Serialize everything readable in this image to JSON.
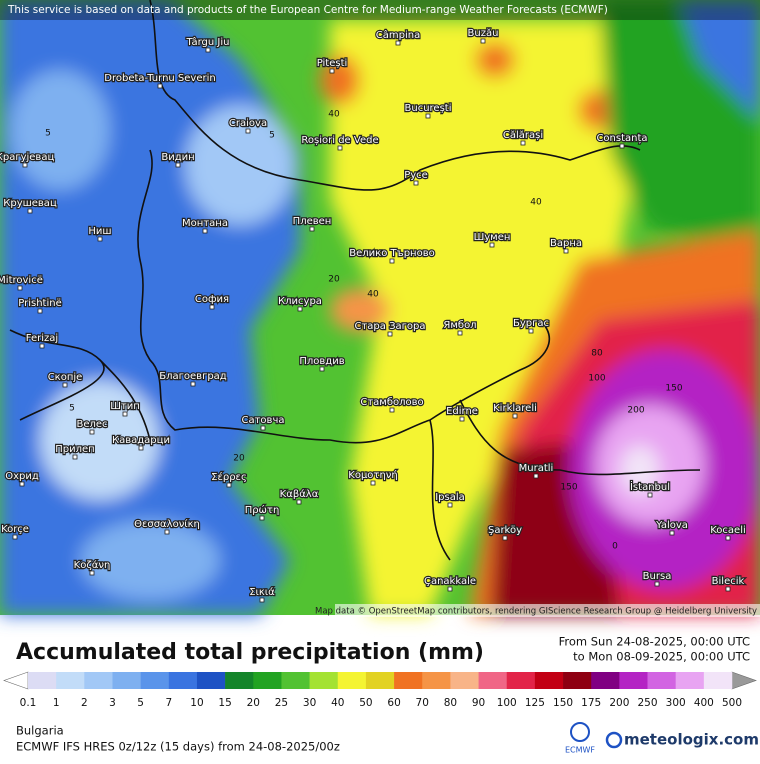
{
  "banner": "This service is based on data and products of the European Centre for Medium-range Weather Forecasts (ECMWF)",
  "attribution": "Map data © OpenStreetMap contributors, rendering GIScience Research Group @ Heidelberg University",
  "title": "Accumulated total precipitation (mm)",
  "period_from": "From Sun 24-08-2025, 00:00 UTC",
  "period_to": "to Mon 08-09-2025, 00:00 UTC",
  "legend": {
    "levels": [
      0.1,
      1,
      2,
      3,
      5,
      7,
      10,
      15,
      20,
      25,
      30,
      40,
      50,
      60,
      70,
      80,
      90,
      100,
      125,
      150,
      175,
      200,
      250,
      300,
      400,
      500
    ],
    "colors": [
      "#dcdcf4",
      "#c2dcf8",
      "#a2c8f6",
      "#7eb0f0",
      "#5a94ea",
      "#3a74e0",
      "#1e52c4",
      "#14852a",
      "#22a322",
      "#52c232",
      "#a4e232",
      "#f4f432",
      "#e2d222",
      "#f07222",
      "#f59446",
      "#f8b488",
      "#f06686",
      "#e22448",
      "#c20014",
      "#8e0012",
      "#800082",
      "#b424c4",
      "#d264e2",
      "#e8a4f2",
      "#f2e4f8"
    ]
  },
  "region": "Bulgaria",
  "model": "ECMWF IFS HRES 0z/12z (15 days) from 24-08-2025/00z",
  "logo_ecmwf": "ECMWF",
  "logo_meteologix": "meteologix.com",
  "cities": [
    "Câmpina",
    "Buzău",
    "Târgu Jiu",
    "Drobeta-Turnu Severin",
    "Pitești",
    "București",
    "Craiova",
    "Roșiori de Vede",
    "Călărași",
    "Constanța",
    "Крагујевац",
    "Видин",
    "Русе",
    "Крушевац",
    "Монтана",
    "Плевен",
    "Шумен",
    "Варна",
    "Ниш",
    "Велико Търново",
    "Mitrovicë",
    "София",
    "Клисура",
    "Prishtinë",
    "Стара Загора",
    "Ямбол",
    "Бургас",
    "Ferizaj",
    "Скопје",
    "Благоевград",
    "Пловдив",
    "Штип",
    "Стамболово",
    "Edirne",
    "Kirklareli",
    "Велес",
    "Кавадарци",
    "Сатовча",
    "Прилеп",
    "Охрид",
    "Σέρρες",
    "Κομοτηνή",
    "Muratli",
    "İstanbul",
    "Καβάλα",
    "Ipsala",
    "Korçe",
    "Θεσσαλονίκη",
    "Πρώτη",
    "Şarköy",
    "Yalova",
    "Kocaeli",
    "Κοζάνη",
    "Çanakkale",
    "Bursa",
    "Bilecik",
    "Σικιά"
  ],
  "contour_labels": [
    5,
    5,
    40,
    40,
    20,
    40,
    80,
    100,
    150,
    200,
    5,
    20,
    150,
    0
  ]
}
